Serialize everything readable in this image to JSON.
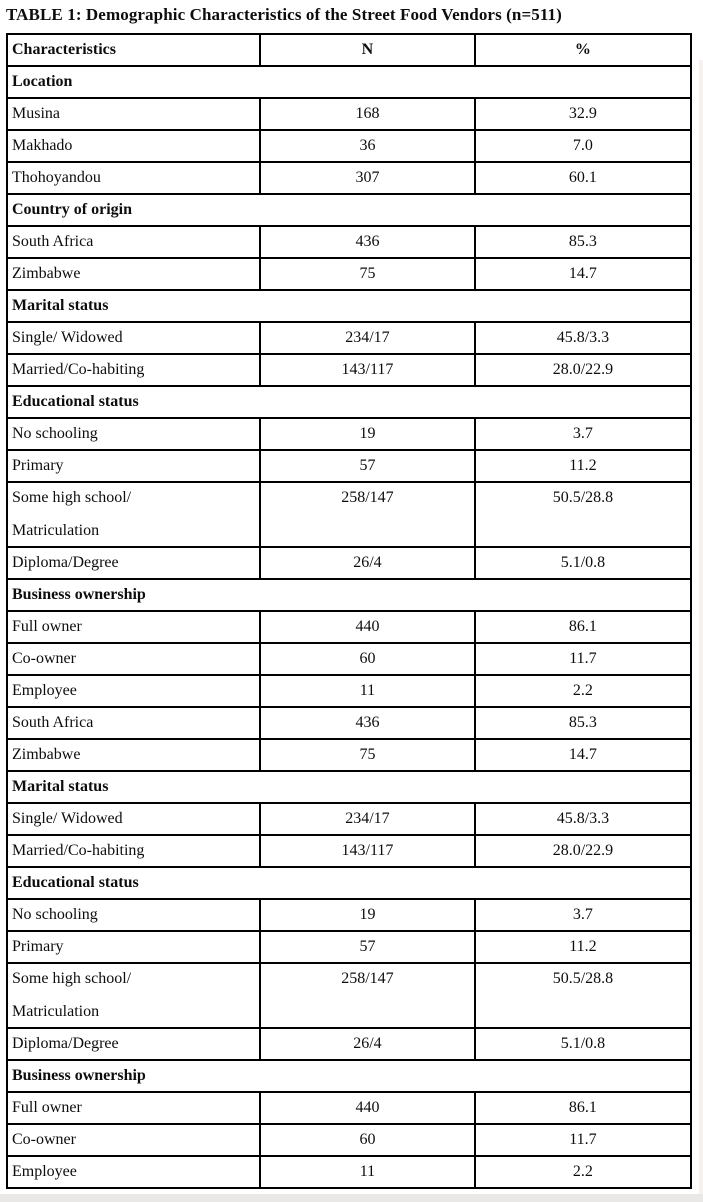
{
  "page": {
    "title": "TABLE 1: Demographic Characteristics of the Street Food Vendors (n=511)"
  },
  "table": {
    "columns": [
      "Characteristics",
      "N",
      "%"
    ],
    "rows": [
      {
        "kind": "section",
        "label": "Location"
      },
      {
        "kind": "data",
        "label": "Musina",
        "n": "168",
        "pct": "32.9"
      },
      {
        "kind": "data",
        "label": "Makhado",
        "n": "36",
        "pct": "7.0"
      },
      {
        "kind": "data",
        "label": "Thohoyandou",
        "n": "307",
        "pct": "60.1"
      },
      {
        "kind": "section",
        "label": "Country of origin"
      },
      {
        "kind": "data",
        "label": "South Africa",
        "n": "436",
        "pct": "85.3"
      },
      {
        "kind": "data",
        "label": "Zimbabwe",
        "n": "75",
        "pct": "14.7"
      },
      {
        "kind": "section",
        "label": "Marital status"
      },
      {
        "kind": "data",
        "label": "Single/ Widowed",
        "n": "234/17",
        "pct": "45.8/3.3"
      },
      {
        "kind": "data",
        "label": "Married/Co-habiting",
        "n": "143/117",
        "pct": "28.0/22.9"
      },
      {
        "kind": "section",
        "label": "Educational status"
      },
      {
        "kind": "data",
        "label": "No schooling",
        "n": "19",
        "pct": "3.7"
      },
      {
        "kind": "data",
        "label": "Primary",
        "n": "57",
        "pct": "11.2"
      },
      {
        "kind": "data",
        "label": "Some high school/",
        "label2": "Matriculation",
        "n": "258/147",
        "pct": "50.5/28.8"
      },
      {
        "kind": "data",
        "label": "Diploma/Degree",
        "n": "26/4",
        "pct": "5.1/0.8"
      },
      {
        "kind": "section",
        "label": "Business ownership"
      },
      {
        "kind": "data",
        "label": "Full owner",
        "n": "440",
        "pct": "86.1"
      },
      {
        "kind": "data",
        "label": "Co-owner",
        "n": "60",
        "pct": "11.7"
      },
      {
        "kind": "data",
        "label": "Employee",
        "n": "11",
        "pct": "2.2"
      },
      {
        "kind": "data",
        "label": "South Africa",
        "n": "436",
        "pct": "85.3"
      },
      {
        "kind": "data",
        "label": "Zimbabwe",
        "n": "75",
        "pct": "14.7"
      },
      {
        "kind": "section",
        "label": "Marital status"
      },
      {
        "kind": "data",
        "label": "Single/ Widowed",
        "n": "234/17",
        "pct": "45.8/3.3"
      },
      {
        "kind": "data",
        "label": "Married/Co-habiting",
        "n": "143/117",
        "pct": "28.0/22.9"
      },
      {
        "kind": "section",
        "label": "Educational status"
      },
      {
        "kind": "data",
        "label": "No schooling",
        "n": "19",
        "pct": "3.7"
      },
      {
        "kind": "data",
        "label": "Primary",
        "n": "57",
        "pct": "11.2"
      },
      {
        "kind": "data",
        "label": "Some high school/",
        "label2": "Matriculation",
        "n": "258/147",
        "pct": "50.5/28.8"
      },
      {
        "kind": "data",
        "label": "Diploma/Degree",
        "n": "26/4",
        "pct": "5.1/0.8"
      },
      {
        "kind": "section",
        "label": "Business ownership"
      },
      {
        "kind": "data",
        "label": "Full owner",
        "n": "440",
        "pct": "86.1"
      },
      {
        "kind": "data",
        "label": "Co-owner",
        "n": "60",
        "pct": "11.7"
      },
      {
        "kind": "data",
        "label": "Employee",
        "n": "11",
        "pct": "2.2"
      }
    ]
  },
  "colors": {
    "border": "#000000",
    "text": "#0d0d0d",
    "page_edge_right": "#f6f0ee",
    "page_edge_bottom": "#eae8e6"
  }
}
